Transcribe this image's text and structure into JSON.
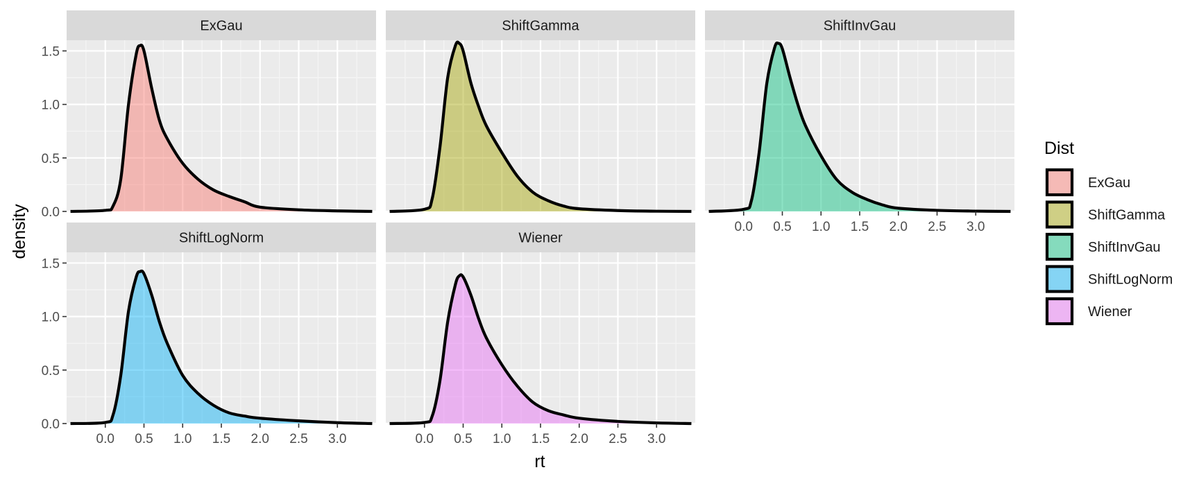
{
  "chart_data": {
    "type": "area",
    "layout": "faceted density plots (ggplot2 facet_wrap)",
    "xlabel": "rt",
    "ylabel": "density",
    "xlim": [
      -0.5,
      3.5
    ],
    "ylim": [
      0,
      1.6
    ],
    "x_ticks": [
      0.0,
      0.5,
      1.0,
      1.5,
      2.0,
      2.5,
      3.0
    ],
    "x_tick_labels": [
      "0.0",
      "0.5",
      "1.0",
      "1.5",
      "2.0",
      "2.5",
      "3.0"
    ],
    "y_ticks": [
      0.0,
      0.5,
      1.0,
      1.5
    ],
    "y_tick_labels": [
      "0.0",
      "0.5",
      "1.0",
      "1.5"
    ],
    "grid": true,
    "legend": {
      "title": "Dist",
      "placement": "right",
      "entries": [
        "ExGau",
        "ShiftGamma",
        "ShiftInvGau",
        "ShiftLogNorm",
        "Wiener"
      ]
    },
    "facets": [
      {
        "label": "ExGau",
        "color": "#f8766d",
        "x": [
          -0.45,
          0.0,
          0.1,
          0.2,
          0.3,
          0.4,
          0.45,
          0.5,
          0.6,
          0.7,
          0.8,
          1.0,
          1.2,
          1.4,
          1.6,
          1.8,
          2.0,
          2.5,
          3.0,
          3.45
        ],
        "y": [
          0.0,
          0.01,
          0.05,
          0.3,
          1.0,
          1.47,
          1.55,
          1.5,
          1.15,
          0.85,
          0.68,
          0.45,
          0.3,
          0.2,
          0.14,
          0.09,
          0.04,
          0.015,
          0.005,
          0.0
        ]
      },
      {
        "label": "ShiftGamma",
        "color": "#a3a500",
        "x": [
          -0.45,
          0.0,
          0.1,
          0.2,
          0.3,
          0.4,
          0.45,
          0.5,
          0.6,
          0.7,
          0.8,
          1.0,
          1.2,
          1.4,
          1.6,
          1.8,
          2.0,
          2.5,
          3.0,
          3.45
        ],
        "y": [
          0.0,
          0.02,
          0.12,
          0.6,
          1.25,
          1.55,
          1.57,
          1.5,
          1.2,
          0.98,
          0.8,
          0.55,
          0.33,
          0.18,
          0.1,
          0.05,
          0.025,
          0.008,
          0.002,
          0.0
        ]
      },
      {
        "label": "ShiftInvGau",
        "color": "#00bf7d",
        "x": [
          -0.45,
          0.0,
          0.1,
          0.2,
          0.3,
          0.4,
          0.45,
          0.5,
          0.6,
          0.7,
          0.8,
          1.0,
          1.2,
          1.4,
          1.6,
          1.8,
          2.0,
          2.5,
          3.0,
          3.45
        ],
        "y": [
          0.0,
          0.02,
          0.1,
          0.55,
          1.2,
          1.53,
          1.57,
          1.52,
          1.25,
          1.0,
          0.8,
          0.52,
          0.3,
          0.18,
          0.11,
          0.06,
          0.03,
          0.01,
          0.003,
          0.0
        ]
      },
      {
        "label": "ShiftLogNorm",
        "color": "#00b0f6",
        "x": [
          -0.45,
          0.0,
          0.1,
          0.2,
          0.3,
          0.4,
          0.45,
          0.5,
          0.6,
          0.7,
          0.8,
          1.0,
          1.2,
          1.4,
          1.6,
          1.8,
          2.0,
          2.5,
          3.0,
          3.45
        ],
        "y": [
          0.0,
          0.01,
          0.08,
          0.45,
          1.05,
          1.37,
          1.42,
          1.4,
          1.2,
          0.95,
          0.75,
          0.45,
          0.28,
          0.17,
          0.1,
          0.07,
          0.05,
          0.025,
          0.008,
          0.0
        ]
      },
      {
        "label": "Wiener",
        "color": "#e76bf3",
        "x": [
          -0.45,
          0.0,
          0.1,
          0.2,
          0.3,
          0.4,
          0.45,
          0.5,
          0.6,
          0.7,
          0.8,
          1.0,
          1.2,
          1.4,
          1.6,
          1.8,
          2.0,
          2.5,
          3.0,
          3.45
        ],
        "y": [
          0.0,
          0.01,
          0.07,
          0.4,
          0.95,
          1.3,
          1.38,
          1.37,
          1.2,
          0.98,
          0.8,
          0.55,
          0.35,
          0.2,
          0.12,
          0.08,
          0.05,
          0.02,
          0.006,
          0.0
        ]
      }
    ]
  }
}
